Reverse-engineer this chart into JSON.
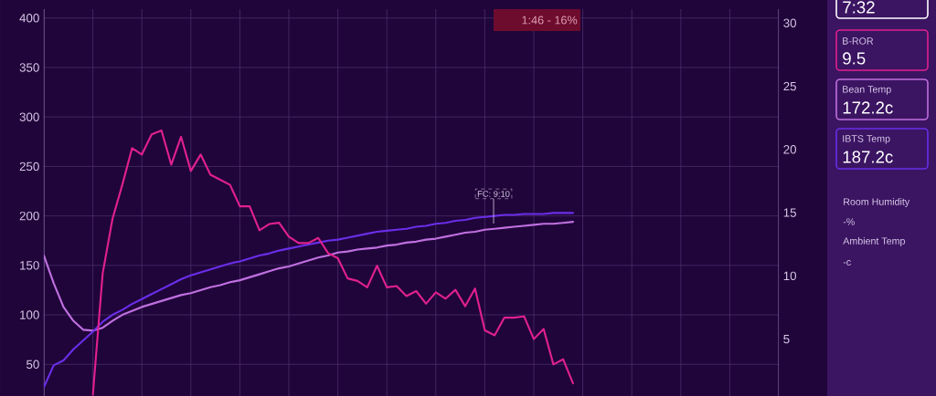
{
  "chart_data": {
    "type": "line",
    "categories": [
      null,
      null,
      null,
      null,
      null,
      null,
      null,
      null,
      null,
      null,
      null,
      null,
      null,
      null,
      null,
      null,
      null,
      null,
      null,
      null,
      null,
      null,
      null,
      null,
      null,
      null,
      null,
      null,
      null,
      null,
      null,
      null,
      null,
      null,
      null,
      null,
      null,
      null,
      null,
      null,
      null,
      null,
      null,
      null,
      null,
      null,
      null,
      null,
      null,
      null,
      null,
      null,
      null,
      null,
      null,
      null,
      null,
      null,
      null,
      null,
      null,
      null,
      null,
      null,
      null,
      null,
      null,
      null,
      null,
      null,
      null,
      null,
      null,
      null,
      null,
      null
    ],
    "series": [
      {
        "name": "B-ROR",
        "color": "#e0208f",
        "axis": "y2",
        "values": [
          null,
          null,
          null,
          null,
          null,
          0.6,
          10.2,
          14.5,
          17.2,
          20.1,
          19.6,
          21.2,
          21.5,
          18.8,
          21.0,
          18.3,
          19.6,
          18.0,
          17.6,
          17.2,
          15.5,
          15.5,
          13.6,
          14.1,
          14.2,
          13.1,
          12.6,
          12.6,
          13.0,
          11.8,
          11.4,
          9.8,
          9.6,
          9.1,
          10.8,
          9.1,
          9.2,
          8.4,
          8.8,
          7.8,
          8.7,
          8.2,
          8.9,
          7.6,
          9.0,
          5.7,
          5.3,
          6.7,
          6.7,
          6.8,
          5.0,
          5.8,
          3.0,
          3.4,
          1.5,
          null,
          null,
          null,
          null,
          null,
          null,
          null,
          null,
          null,
          null,
          null,
          null,
          null,
          null,
          null,
          null,
          null,
          null,
          null,
          null,
          null
        ]
      },
      {
        "name": "Bean Temp",
        "color": "#c070e0",
        "values": [
          160,
          132,
          108,
          94,
          85,
          84,
          87,
          94,
          100,
          104,
          108,
          111,
          114,
          117,
          120,
          122,
          125,
          128,
          130,
          133,
          135,
          138,
          141,
          144,
          147,
          149,
          152,
          155,
          158,
          160,
          163,
          164,
          166,
          167,
          168,
          170,
          171,
          173,
          174,
          176,
          177,
          179,
          181,
          183,
          184,
          186,
          187,
          188,
          189,
          190,
          191,
          192,
          192,
          193,
          194,
          null,
          null,
          null,
          null,
          null,
          null,
          null,
          null,
          null,
          null,
          null,
          null,
          null,
          null,
          null,
          null,
          null,
          null,
          null,
          null,
          null
        ]
      },
      {
        "name": "IBTS Temp",
        "color": "#6a2ee8",
        "values": [
          27,
          49,
          54,
          65,
          74,
          83,
          93,
          100,
          105,
          111,
          116,
          121,
          126,
          131,
          136,
          140,
          143,
          146,
          149,
          152,
          154,
          157,
          160,
          162,
          165,
          167,
          169,
          171,
          173,
          175,
          176,
          178,
          180,
          182,
          184,
          185,
          186,
          187,
          189,
          190,
          192,
          193,
          195,
          196,
          198,
          199,
          200,
          201,
          201,
          202,
          202,
          202,
          203,
          203,
          203,
          null,
          null,
          null,
          null,
          null,
          null,
          null,
          null,
          null,
          null,
          null,
          null,
          null,
          null,
          null,
          null,
          null,
          null,
          null,
          null,
          null
        ]
      }
    ],
    "ylim": [
      18,
      409
    ],
    "yticks": [
      50,
      100,
      150,
      200,
      250,
      300,
      350,
      400
    ],
    "y2lim": [
      0.5,
      31.1
    ],
    "y2ticks": [
      5,
      10,
      15,
      20,
      25,
      30
    ],
    "grid": true,
    "legend": "right",
    "line_style": "solid",
    "annotations": [
      "1:46 - 16%",
      "FC: 9:10",
      "7:32",
      "9.5",
      "172.2c",
      "187.2c",
      "Room Humidity",
      "-%",
      "Ambient Temp",
      "-c"
    ]
  }
}
